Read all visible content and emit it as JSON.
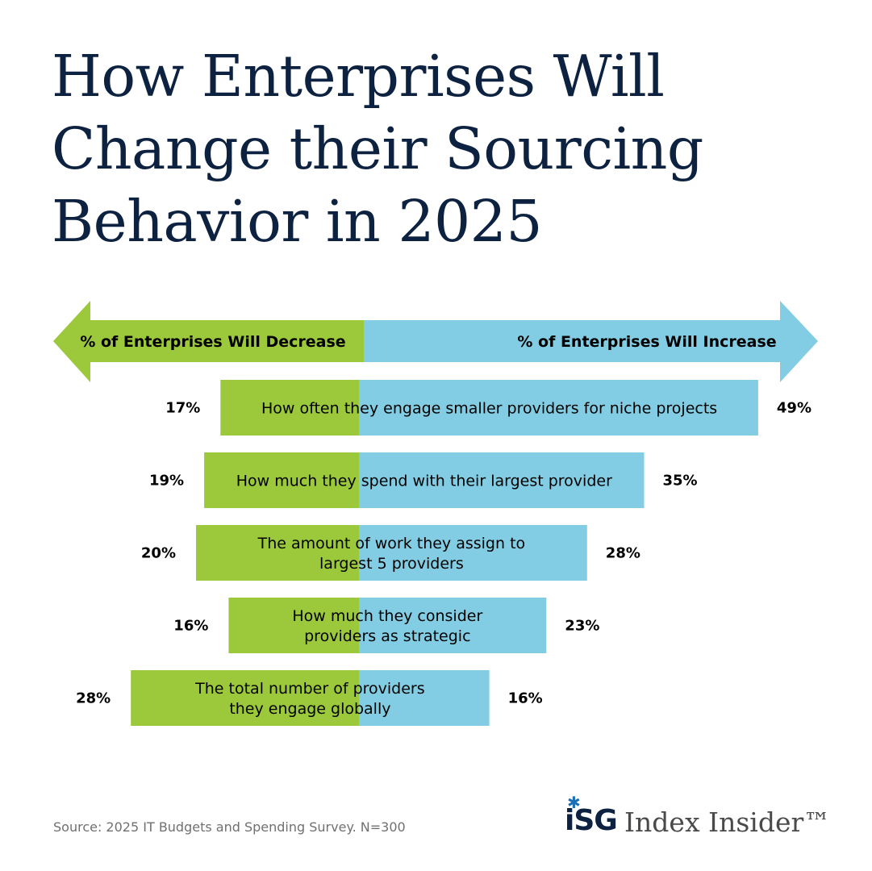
{
  "title": "How Enterprises Will\nChange their Sourcing\nBehavior in 2025",
  "colors": {
    "decrease": "#9cc93b",
    "increase": "#82cde3",
    "title": "#0d2240"
  },
  "chart_data": {
    "type": "bar",
    "orientation": "diverging-horizontal",
    "arrow_left_label": "% of Enterprises Will Decrease",
    "arrow_right_label": "% of Enterprises Will Increase",
    "categories": [
      "How often they engage smaller providers for niche projects",
      "How much they spend with their largest provider",
      "The amount of work they assign to\nlargest 5 providers",
      "How much they consider\nproviders as strategic",
      "The total number of providers\nthey engage globally"
    ],
    "series": [
      {
        "values": [
          17,
          19,
          20,
          16,
          28
        ]
      },
      {
        "values": [
          49,
          35,
          28,
          23,
          16
        ]
      }
    ],
    "value_labels_decrease": [
      "17%",
      "19%",
      "20%",
      "16%",
      "28%"
    ],
    "value_labels_increase": [
      "49%",
      "35%",
      "28%",
      "23%",
      "16%"
    ]
  },
  "footer": {
    "source": "Source: 2025 IT Budgets and Spending Survey. N=300",
    "brand_mark": "iSG",
    "brand_name": "Index Insider™"
  }
}
